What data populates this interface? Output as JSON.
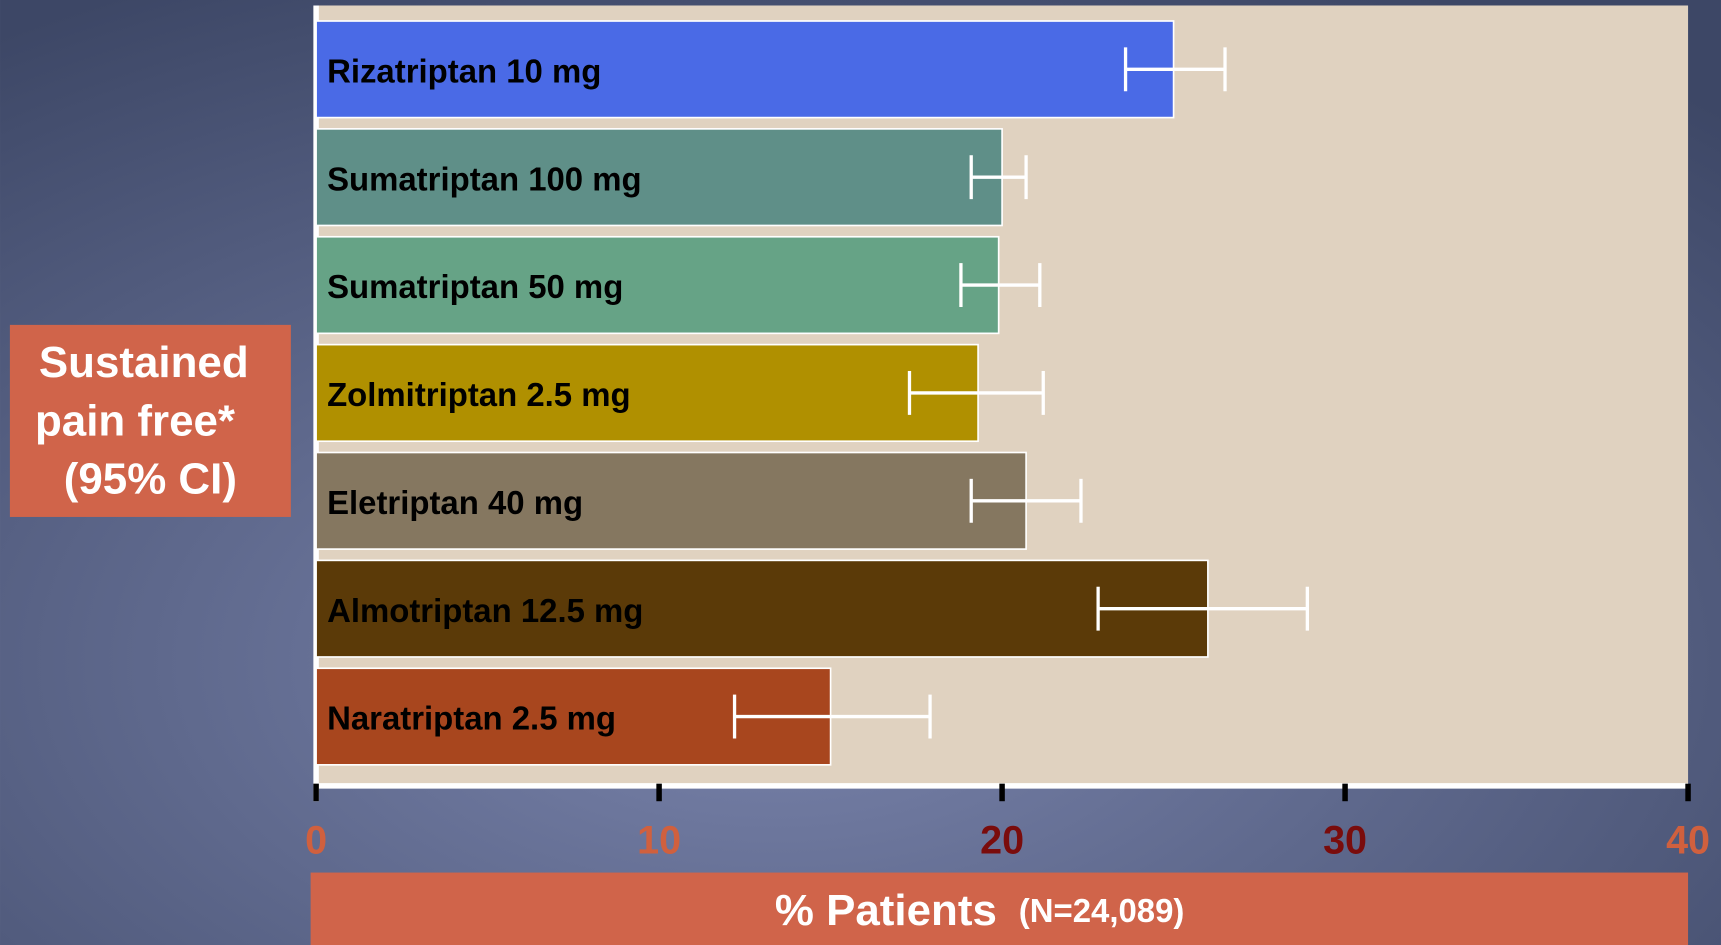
{
  "chart_data": {
    "type": "hbar_error",
    "ylabel": [
      "Sustained",
      "pain free*",
      "(95% CI)"
    ],
    "xlabel": "% Patients",
    "xlabel_note": "(N=24,089)",
    "categories": [
      "Rizatriptan 10 mg",
      "Sumatriptan 100 mg",
      "Sumatriptan 50 mg",
      "Zolmitriptan 2.5 mg",
      "Eletriptan 40 mg",
      "Almotriptan 12.5 mg",
      "Naratriptan 2.5 mg"
    ],
    "values": [
      25.0,
      20.0,
      19.9,
      19.3,
      20.7,
      26.0,
      15.0
    ],
    "ci_low": [
      23.6,
      19.1,
      18.8,
      17.3,
      19.1,
      22.8,
      12.2
    ],
    "ci_high": [
      26.5,
      20.7,
      21.1,
      21.2,
      22.3,
      28.9,
      17.9
    ],
    "colors": [
      "#4a6ae6",
      "#5f8f88",
      "#66a386",
      "#b09000",
      "#857760",
      "#5b3a08",
      "#a8461e"
    ],
    "xlim": [
      0,
      40
    ],
    "xticks": [
      0,
      10,
      20,
      30,
      40
    ],
    "xtick_colors": [
      "#d0603e",
      "#d0603e",
      "#7a0c0c",
      "#7a0c0c",
      "#d0603e"
    ]
  }
}
